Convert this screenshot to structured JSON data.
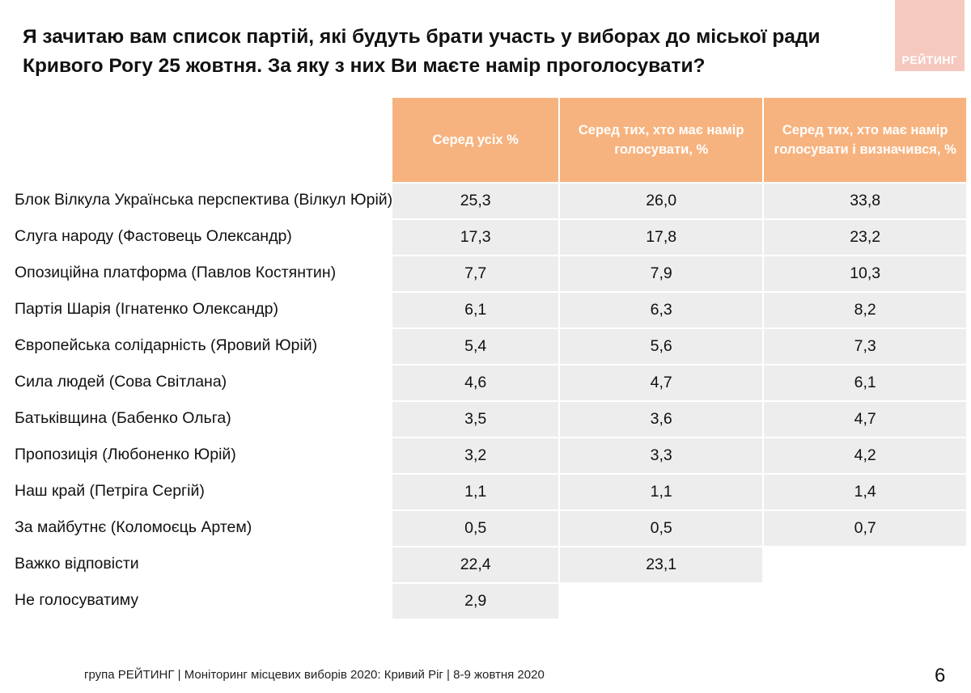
{
  "title": "Я зачитаю вам список партій, які будуть брати участь у виборах до міської ради Кривого Рогу 25 жовтня. За яку з них Ви маєте намір проголосувати?",
  "logo_text": "РЕЙТИНГ",
  "colors": {
    "header_bg": "#f7b37f",
    "cell_bg": "#ededed",
    "logo_bg": "#f6c9bf"
  },
  "table": {
    "headers": [
      "Серед усіх %",
      "Серед тих, хто має намір голосувати, %",
      "Серед тих, хто має намір голосувати і визначився, %"
    ],
    "rows": [
      {
        "name": "Блок Вілкула Українська перспектива (Вілкул Юрій)",
        "values": [
          "25,3",
          "26,0",
          "33,8"
        ]
      },
      {
        "name": "Слуга народу (Фастовець Олександр)",
        "values": [
          "17,3",
          "17,8",
          "23,2"
        ]
      },
      {
        "name": "Опозиційна платформа (Павлов Костянтин)",
        "values": [
          "7,7",
          "7,9",
          "10,3"
        ]
      },
      {
        "name": "Партія Шарія (Ігнатенко Олександр)",
        "values": [
          "6,1",
          "6,3",
          "8,2"
        ]
      },
      {
        "name": "Європейська солідарність (Яровий Юрій)",
        "values": [
          "5,4",
          "5,6",
          "7,3"
        ]
      },
      {
        "name": "Сила людей (Сова Світлана)",
        "values": [
          "4,6",
          "4,7",
          "6,1"
        ]
      },
      {
        "name": "Батьківщина (Бабенко Ольга)",
        "values": [
          "3,5",
          "3,6",
          "4,7"
        ]
      },
      {
        "name": "Пропозиція (Любоненко Юрій)",
        "values": [
          "3,2",
          "3,3",
          "4,2"
        ]
      },
      {
        "name": "Наш край (Петріга Сергій)",
        "values": [
          "1,1",
          "1,1",
          "1,4"
        ]
      },
      {
        "name": "За майбутнє (Коломоєць Артем)",
        "values": [
          "0,5",
          "0,5",
          "0,7"
        ]
      },
      {
        "name": "Важко відповісти",
        "values": [
          "22,4",
          "23,1"
        ]
      },
      {
        "name": "Не голосуватиму",
        "values": [
          "2,9"
        ]
      }
    ]
  },
  "footer": "група РЕЙТИНГ  | Моніторинг місцевих виборів 2020: Кривий Ріг |  8-9 жовтня 2020",
  "page_number": "6"
}
